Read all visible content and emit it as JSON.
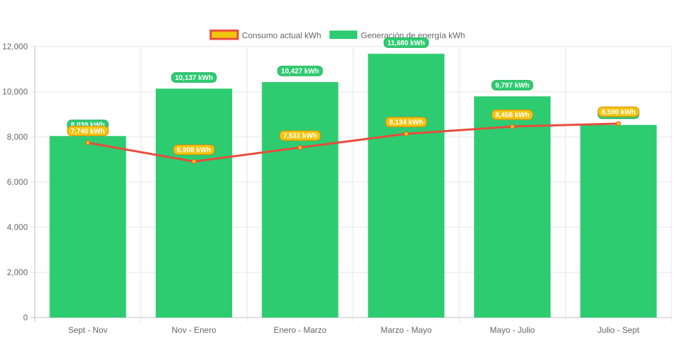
{
  "chart_data": {
    "type": "bar",
    "categories": [
      "Sept - Nov",
      "Nov - Enero",
      "Enero - Marzo",
      "Marzo - Mayo",
      "Mayo - Julio",
      "Julio - Sept"
    ],
    "ylim": [
      0,
      12000
    ],
    "yticks": [
      "0",
      "2,000",
      "4,000",
      "6,000",
      "8,000",
      "10,000",
      "12,000"
    ],
    "ytick_values": [
      0,
      2000,
      4000,
      6000,
      8000,
      10000,
      12000
    ],
    "grid": true,
    "legend_position": "top-center",
    "series": [
      {
        "name": "Consumo actual kWh",
        "type": "line",
        "color": "#f1c40f",
        "border_color": "#e74c3c",
        "values": [
          7740,
          6908,
          7531,
          8134,
          8458,
          8590
        ],
        "labels": [
          "7,740 kWh",
          "6,908 kWh",
          "7,531 kWh",
          "8,134 kWh",
          "8,458 kWh",
          "8,590 kWh"
        ]
      },
      {
        "name": "Generación de energía kWh",
        "type": "bar",
        "color": "#2ecc71",
        "values": [
          8039,
          10137,
          10427,
          11680,
          9797,
          8530
        ],
        "labels": [
          "8,039 kWh",
          "10,137 kWh",
          "10,427 kWh",
          "11,680 kWh",
          "9,797 kWh",
          "8,530 kWh"
        ]
      }
    ]
  }
}
